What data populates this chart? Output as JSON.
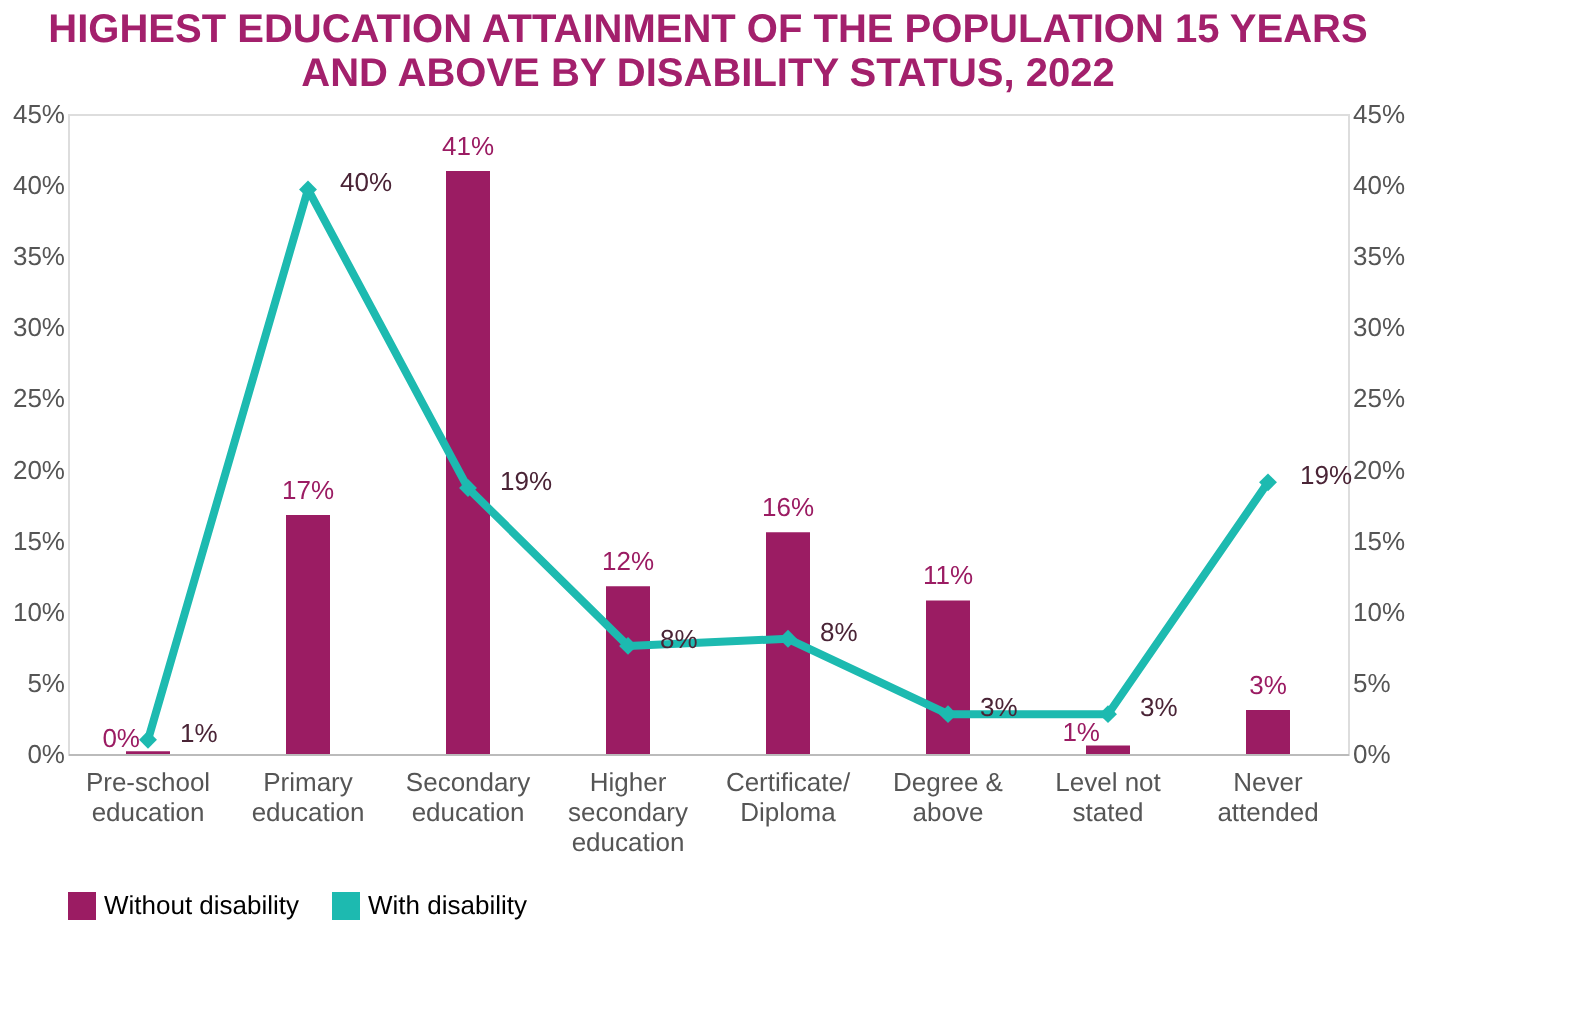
{
  "chart_data": {
    "type": "bar",
    "title": "HIGHEST EDUCATION ATTAINMENT OF THE POPULATION 15 YEARS AND ABOVE BY DISABILITY STATUS, 2022",
    "categories": [
      "Pre-school education",
      "Primary education",
      "Secondary education",
      "Higher secondary education",
      "Certificate/ Diploma",
      "Degree & above",
      "Level not stated",
      "Never attended"
    ],
    "series": [
      {
        "name": "Without disability",
        "color": "#9b1c63",
        "type": "bar",
        "values": [
          0.2,
          16.8,
          41,
          11.8,
          15.6,
          10.8,
          0.6,
          3.1
        ],
        "value_labels": [
          "0%",
          "17%",
          "41%",
          "12%",
          "16%",
          "11%",
          "1%",
          "3%"
        ]
      },
      {
        "name": "With disability",
        "color": "#1dbab0",
        "type": "line",
        "axis": "y2",
        "marker": "diamond",
        "values": [
          1,
          39.7,
          18.7,
          7.6,
          8.1,
          2.8,
          2.8,
          19.1
        ],
        "value_labels": [
          "1%",
          "40%",
          "19%",
          "8%",
          "8%",
          "3%",
          "3%",
          "19%"
        ]
      }
    ],
    "ylim": [
      0,
      45
    ],
    "yticks": [
      {
        "value": 0,
        "label": "0%"
      },
      {
        "value": 5,
        "label": "5%"
      },
      {
        "value": 10,
        "label": "10%"
      },
      {
        "value": 15,
        "label": "15%"
      },
      {
        "value": 20,
        "label": "20%"
      },
      {
        "value": 25,
        "label": "25%"
      },
      {
        "value": 30,
        "label": "30%"
      },
      {
        "value": 35,
        "label": "35%"
      },
      {
        "value": 40,
        "label": "40%"
      },
      {
        "value": 45,
        "label": "45%"
      }
    ],
    "y2lim": [
      0,
      45
    ],
    "y2ticks": [
      {
        "value": 0,
        "label": "0%"
      },
      {
        "value": 5,
        "label": "5%"
      },
      {
        "value": 10,
        "label": "10%"
      },
      {
        "value": 15,
        "label": "15%"
      },
      {
        "value": 20,
        "label": "20%"
      },
      {
        "value": 25,
        "label": "25%"
      },
      {
        "value": 30,
        "label": "30%"
      },
      {
        "value": 35,
        "label": "35%"
      },
      {
        "value": 40,
        "label": "40%"
      },
      {
        "value": 45,
        "label": "45%"
      }
    ],
    "grid": false,
    "legend": "bottom"
  }
}
